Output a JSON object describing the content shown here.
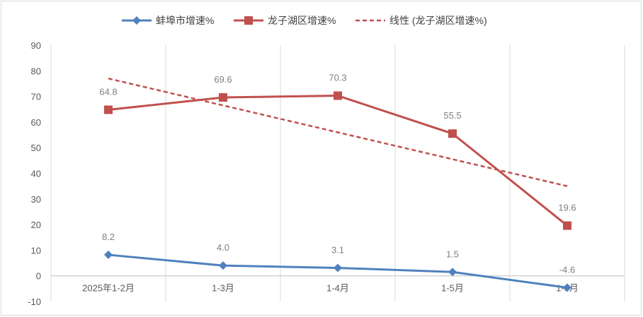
{
  "chart_data": {
    "type": "line",
    "categories": [
      "2025年1-2月",
      "1-3月",
      "1-4月",
      "1-5月",
      "1-6月"
    ],
    "ylim": [
      -10,
      90
    ],
    "yticks": [
      -10,
      0,
      10,
      20,
      30,
      40,
      50,
      60,
      70,
      80,
      90
    ],
    "grid": "vertical",
    "legend_position": "top",
    "series": [
      {
        "name": "蚌埠市增速%",
        "color": "#4f81bd",
        "marker": "diamond",
        "values": [
          8.2,
          4.0,
          3.1,
          1.5,
          -4.6
        ],
        "labels": [
          "8.2",
          "4.0",
          "3.1",
          "1.5",
          "-4.6"
        ]
      },
      {
        "name": "龙子湖区增速%",
        "color": "#c0504d",
        "marker": "square",
        "values": [
          64.8,
          69.6,
          70.3,
          55.5,
          19.6
        ],
        "labels": [
          "64.8",
          "69.6",
          "70.3",
          "55.5",
          "19.6"
        ]
      }
    ],
    "trendline": {
      "name": "线性 (龙子湖区增速%)",
      "color": "#c0504d",
      "style": "dashed",
      "start": 77.0,
      "end": 35.0
    }
  }
}
